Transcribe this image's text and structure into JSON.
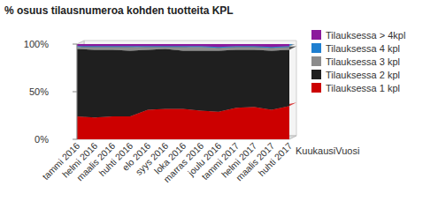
{
  "chart_data": {
    "type": "area",
    "title": "% osuus tilausnumeroa kohden tuotteita KPL",
    "x_label": "KuukausiVuosi",
    "categories": [
      "tammi 2016",
      "helmi 2016",
      "maalis 2016",
      "huhti 2016",
      "elo 2016",
      "syys 2016",
      "loka 2016",
      "marras 2016",
      "joulu 2016",
      "tammi 2017",
      "helmi 2017",
      "maalis 2017",
      "huhti 2017"
    ],
    "series": [
      {
        "name": "Tilauksessa 1 kpl",
        "color": "#cc0000",
        "values": [
          24,
          23,
          24,
          24,
          31,
          32,
          32,
          30,
          29,
          33,
          34,
          31,
          35
        ]
      },
      {
        "name": "Tilauksessa 2 kpl",
        "color": "#1f1f1f",
        "values": [
          71,
          71,
          70,
          69,
          63,
          63,
          61,
          63,
          64,
          61,
          60,
          62,
          59
        ]
      },
      {
        "name": "Tilauksessa 3 kpl",
        "color": "#8c8c8c",
        "values": [
          2,
          3,
          3,
          4,
          3,
          2,
          4,
          4,
          3,
          3,
          3,
          3,
          3
        ]
      },
      {
        "name": "Tilauksessa 4 kpl",
        "color": "#1f7fd0",
        "values": [
          1,
          1,
          1,
          1,
          1,
          1,
          1,
          1,
          1,
          1,
          1,
          1,
          1
        ]
      },
      {
        "name": "Tilauksessa > 4kpl",
        "color": "#8b1a9c",
        "values": [
          2,
          2,
          2,
          2,
          2,
          2,
          2,
          2,
          3,
          2,
          2,
          3,
          2
        ]
      }
    ],
    "stacked": true,
    "ylim": [
      0,
      100
    ],
    "yticks": [
      {
        "value": 0,
        "label": "0%"
      },
      {
        "value": 50,
        "label": "50%"
      },
      {
        "value": 100,
        "label": "100%"
      }
    ],
    "grid": false,
    "legend": "right"
  }
}
